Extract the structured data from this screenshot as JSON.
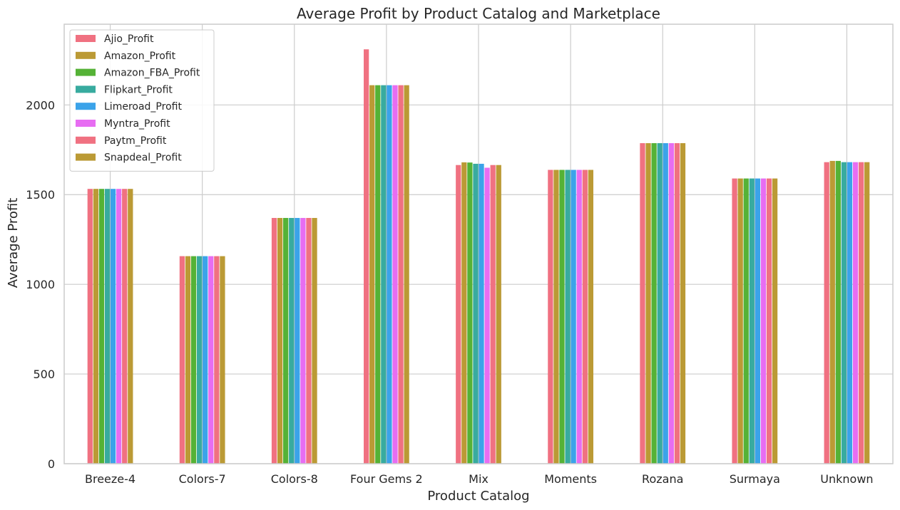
{
  "chart_data": {
    "type": "bar",
    "title": "Average Profit by Product Catalog and Marketplace",
    "xlabel": "Product Catalog",
    "ylabel": "Average Profit",
    "ylim": [
      0,
      2450
    ],
    "yticks": [
      0,
      500,
      1000,
      1500,
      2000
    ],
    "grid": true,
    "legend_position": "top-left",
    "categories": [
      "Breeze-4",
      "Colors-7",
      "Colors-8",
      "Four Gems 2",
      "Mix",
      "Moments",
      "Rozana",
      "Surmaya",
      "Unknown"
    ],
    "series": [
      {
        "name": "Ajio_Profit",
        "color": "#f07181",
        "values": [
          1532,
          1157,
          1370,
          2310,
          1665,
          1638,
          1787,
          1590,
          1681
        ]
      },
      {
        "name": "Amazon_Profit",
        "color": "#bb9a35",
        "values": [
          1532,
          1157,
          1370,
          2110,
          1680,
          1638,
          1787,
          1590,
          1688
        ]
      },
      {
        "name": "Amazon_FBA_Profit",
        "color": "#55b236",
        "values": [
          1532,
          1157,
          1370,
          2110,
          1679,
          1638,
          1787,
          1590,
          1688
        ]
      },
      {
        "name": "Flipkart_Profit",
        "color": "#38ab9f",
        "values": [
          1532,
          1157,
          1370,
          2110,
          1672,
          1638,
          1787,
          1590,
          1681
        ]
      },
      {
        "name": "Limeroad_Profit",
        "color": "#3ba3e9",
        "values": [
          1532,
          1157,
          1370,
          2110,
          1672,
          1638,
          1787,
          1590,
          1681
        ]
      },
      {
        "name": "Myntra_Profit",
        "color": "#e76df2",
        "values": [
          1532,
          1157,
          1370,
          2110,
          1650,
          1638,
          1787,
          1590,
          1681
        ]
      },
      {
        "name": "Paytm_Profit",
        "color": "#f07181",
        "values": [
          1532,
          1157,
          1370,
          2110,
          1665,
          1638,
          1787,
          1590,
          1681
        ]
      },
      {
        "name": "Snapdeal_Profit",
        "color": "#bb9a35",
        "values": [
          1532,
          1157,
          1370,
          2110,
          1665,
          1638,
          1787,
          1590,
          1681
        ]
      }
    ]
  }
}
